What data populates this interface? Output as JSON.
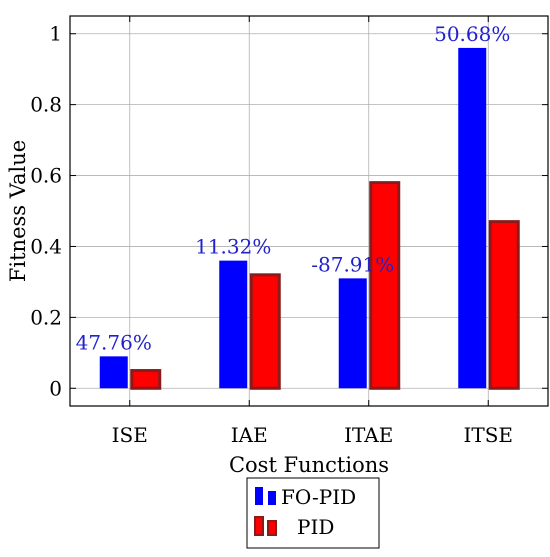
{
  "chart_data": {
    "type": "bar",
    "categories": [
      "ISE",
      "IAE",
      "ITAE",
      "ITSE"
    ],
    "series": [
      {
        "name": "FO-PID",
        "values": [
          0.09,
          0.36,
          0.31,
          0.96
        ],
        "color": "#0000ff"
      },
      {
        "name": "PID",
        "values": [
          0.05,
          0.32,
          0.58,
          0.47
        ],
        "color": "#ff0000",
        "edge_color": "#8b1a1a"
      }
    ],
    "annotations": [
      "47.76%",
      "11.32%",
      "-87.91%",
      "50.68%"
    ],
    "annotation_color": "#2222cc",
    "xlabel": "Cost Functions",
    "ylabel": "Fitness Value",
    "ylim": [
      -0.05,
      1.05
    ],
    "yticks": [
      0,
      0.2,
      0.4,
      0.6,
      0.8,
      1
    ],
    "ytick_labels": [
      "0",
      "0.2",
      "0.4",
      "0.6",
      "0.8",
      "1"
    ],
    "grid": true,
    "legend_position": "bottom-center"
  }
}
